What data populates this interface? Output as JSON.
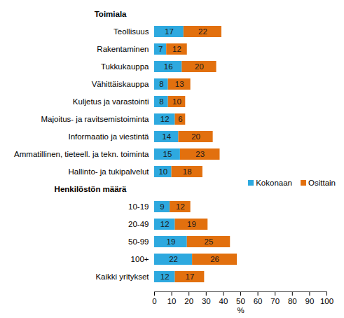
{
  "chart_data": {
    "type": "bar",
    "orientation": "horizontal",
    "stacked": true,
    "data_labels": true,
    "grid": false,
    "legend": "right",
    "categories": [
      "Toimiala",
      "Teollisuus",
      "Rakentaminen",
      "Tukkukauppa",
      "Vähittäiskauppa",
      "Kuljetus ja varastointi",
      "Majoitus- ja ravitsemistoiminta",
      "Informaatio ja viestintä",
      "Ammatillinen, tieteell. ja tekn. toiminta",
      "Hallinto- ja tukipalvelut",
      "Henkilöstön määrä",
      "10-19",
      "20-49",
      "50-99",
      "100+",
      "Kaikki yritykset"
    ],
    "series": [
      {
        "name": "Kokonaan",
        "color": "#2ea9df",
        "values": [
          null,
          17,
          7,
          16,
          8,
          8,
          12,
          14,
          15,
          10,
          null,
          9,
          12,
          19,
          22,
          12
        ]
      },
      {
        "name": "Osittain",
        "color": "#e2700e",
        "values": [
          null,
          22,
          12,
          20,
          13,
          10,
          6,
          20,
          23,
          18,
          null,
          12,
          19,
          25,
          26,
          17
        ]
      }
    ],
    "xlabel": "%",
    "xlim": [
      0,
      100
    ],
    "xticks": [
      0,
      10,
      20,
      30,
      40,
      50,
      60,
      70,
      80,
      90,
      100
    ]
  }
}
